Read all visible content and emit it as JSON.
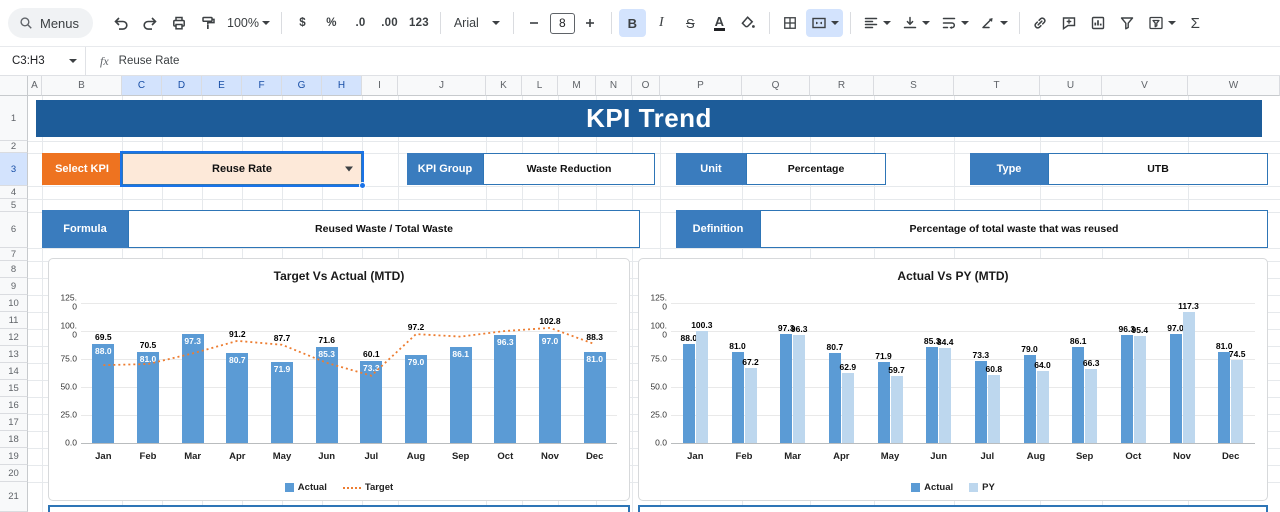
{
  "colors": {
    "accent": "#1a73e8",
    "banner": "#1d5c99",
    "label_blue": "#3a7cbe",
    "orange": "#ee7320",
    "box_border": "#2e75b6",
    "dropdown_fill": "#fde9d9",
    "bar_actual": "#5b9bd5",
    "bar_py": "#bdd7ee",
    "target_line": "#ed7d31"
  },
  "toolbar": {
    "menus_label": "Menus",
    "zoom_value": "100%",
    "currency_label": "$",
    "percent_label": "%",
    "decrease_decimal_label": ".0",
    "increase_decimal_label": ".00",
    "number_format_label": "123",
    "font_name": "Arial",
    "font_size": "8",
    "bold_label": "B",
    "italic_label": "I",
    "strikethrough_label": "S",
    "text_color_label": "A",
    "sum_label": "Σ"
  },
  "formula_bar": {
    "cell_reference": "C3:H3",
    "fx_label": "fx",
    "formula_value": "Reuse Rate"
  },
  "grid": {
    "column_letters": [
      "A",
      "B",
      "C",
      "D",
      "E",
      "F",
      "G",
      "H",
      "I",
      "J",
      "K",
      "L",
      "M",
      "N",
      "O",
      "P",
      "Q",
      "R",
      "S",
      "T",
      "U",
      "V",
      "W"
    ],
    "selected_columns": [
      "C",
      "D",
      "E",
      "F",
      "G",
      "H"
    ],
    "row_numbers": [
      "1",
      "2",
      "3",
      "4",
      "5",
      "6",
      "7",
      "8",
      "9",
      "10",
      "11",
      "12",
      "13",
      "14",
      "15",
      "16",
      "17",
      "18",
      "19",
      "20",
      "21"
    ],
    "selected_row": "3"
  },
  "sheet": {
    "title": "KPI Trend",
    "select_kpi": {
      "label": "Select KPI",
      "value": "Reuse Rate"
    },
    "kpi_group": {
      "label": "KPI Group",
      "value": "Waste Reduction"
    },
    "unit": {
      "label": "Unit",
      "value": "Percentage"
    },
    "type": {
      "label": "Type",
      "value": "UTB"
    },
    "formula": {
      "label": "Formula",
      "value": "Reused Waste / Total Waste"
    },
    "definition": {
      "label": "Definition",
      "value": "Percentage of total waste that was reused"
    }
  },
  "chart_data": [
    {
      "type": "bar",
      "title": "Target Vs Actual (MTD)",
      "categories": [
        "Jan",
        "Feb",
        "Mar",
        "Apr",
        "May",
        "Jun",
        "Jul",
        "Aug",
        "Sep",
        "Oct",
        "Nov",
        "Dec"
      ],
      "series": [
        {
          "name": "Actual",
          "kind": "bar",
          "color": "#5b9bd5",
          "label_pos": "inside",
          "values": [
            88.0,
            81.0,
            97.3,
            80.7,
            71.9,
            85.3,
            73.3,
            79.0,
            86.1,
            96.3,
            97.0,
            81.0
          ],
          "labels": [
            "88.0",
            "81.0",
            "97.3",
            "80.7",
            "71.9",
            "85.3",
            "73.3",
            "79.0",
            "86.1",
            "96.3",
            "97.0",
            "81.0"
          ]
        },
        {
          "name": "Target",
          "kind": "line",
          "color": "#ed7d31",
          "values": [
            69.5,
            70.5,
            80.0,
            91.2,
            87.7,
            71.6,
            60.1,
            97.2,
            95.0,
            100.0,
            102.8,
            88.3
          ],
          "labels": [
            "69.5",
            "70.5",
            "",
            "91.2",
            "87.7",
            "71.6",
            "60.1",
            "97.2",
            "",
            "",
            "102.8",
            "88.3"
          ]
        }
      ],
      "ylim": [
        0,
        125
      ],
      "yticks": [
        "0.0",
        "25.0",
        "50.0",
        "75.0",
        "100.0",
        "125.0"
      ],
      "legend_position": "bottom",
      "grid": true
    },
    {
      "type": "bar",
      "title": "Actual Vs PY (MTD)",
      "categories": [
        "Jan",
        "Feb",
        "Mar",
        "Apr",
        "May",
        "Jun",
        "Jul",
        "Aug",
        "Sep",
        "Oct",
        "Nov",
        "Dec"
      ],
      "series": [
        {
          "name": "Actual",
          "kind": "bar",
          "color": "#5b9bd5",
          "label_pos": "above",
          "values": [
            88.0,
            81.0,
            97.3,
            80.7,
            71.9,
            85.3,
            73.3,
            79.0,
            86.1,
            96.3,
            97.0,
            81.0
          ],
          "labels": [
            "88.0",
            "81.0",
            "97.3",
            "80.7",
            "71.9",
            "85.3",
            "73.3",
            "79.0",
            "86.1",
            "96.3",
            "97.0",
            "81.0"
          ]
        },
        {
          "name": "PY",
          "kind": "bar",
          "color": "#bdd7ee",
          "label_pos": "above",
          "values": [
            100.3,
            67.2,
            96.3,
            62.9,
            59.7,
            84.4,
            60.8,
            64.0,
            66.3,
            95.4,
            117.3,
            74.5
          ],
          "labels": [
            "100.3",
            "67.2",
            "96.3",
            "62.9",
            "59.7",
            "84.4",
            "60.8",
            "64.0",
            "66.3",
            "95.4",
            "117.3",
            "74.5"
          ]
        }
      ],
      "ylim": [
        0,
        125
      ],
      "yticks": [
        "0.0",
        "25.0",
        "50.0",
        "75.0",
        "100.0",
        "125.0"
      ],
      "legend_position": "bottom",
      "grid": true
    }
  ]
}
